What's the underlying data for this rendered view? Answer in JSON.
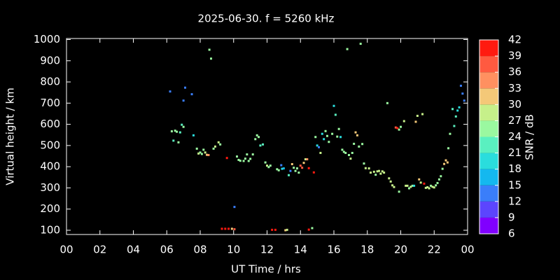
{
  "chart_data": {
    "type": "scatter",
    "title": "2025-06-30. f = 5260 kHz",
    "xlabel": "UT Time / hrs",
    "ylabel": "Virtual height / km",
    "xlim": [
      0,
      24
    ],
    "xticks": [
      {
        "value": 0,
        "label": "00"
      },
      {
        "value": 2,
        "label": "02"
      },
      {
        "value": 4,
        "label": "04"
      },
      {
        "value": 6,
        "label": "06"
      },
      {
        "value": 8,
        "label": "08"
      },
      10,
      12,
      14,
      16,
      18,
      20,
      22,
      {
        "value": 24,
        "label": "00"
      }
    ],
    "ylim": [
      80,
      1005
    ],
    "yticks": [
      100,
      200,
      300,
      400,
      500,
      600,
      700,
      800,
      900,
      1000
    ],
    "colorbar": {
      "label": "SNR / dB",
      "lim": [
        6,
        42
      ],
      "ticks": [
        6,
        9,
        12,
        15,
        18,
        21,
        24,
        27,
        30,
        33,
        36,
        39,
        42
      ],
      "colors": [
        "#8000ff",
        "#5c45fe",
        "#3a7efa",
        "#14b8ef",
        "#2adddd",
        "#5af0c0",
        "#9af8a0",
        "#c6f08a",
        "#f4c878",
        "#ff9060",
        "#ff5a40",
        "#ff1a10"
      ]
    },
    "x": [
      6.2,
      6.3,
      6.4,
      6.5,
      6.6,
      6.7,
      6.8,
      6.9,
      7.0,
      7.0,
      7.1,
      7.5,
      7.6,
      7.8,
      7.9,
      8.0,
      8.1,
      8.2,
      8.3,
      8.4,
      8.5,
      8.55,
      8.65,
      8.8,
      8.9,
      9.1,
      9.2,
      9.3,
      9.5,
      9.6,
      9.7,
      9.9,
      10.05,
      10.05,
      10.2,
      10.3,
      10.4,
      10.6,
      10.7,
      10.8,
      10.9,
      11.0,
      11.15,
      11.3,
      11.4,
      11.5,
      11.6,
      11.75,
      11.9,
      12.0,
      12.1,
      12.2,
      12.3,
      12.5,
      12.6,
      12.7,
      12.85,
      12.9,
      13.0,
      13.1,
      13.2,
      13.3,
      13.4,
      13.5,
      13.6,
      13.7,
      13.8,
      13.9,
      14.0,
      14.1,
      14.2,
      14.3,
      14.4,
      14.5,
      14.5,
      14.7,
      14.8,
      14.9,
      15.0,
      15.1,
      15.2,
      15.3,
      15.4,
      15.5,
      15.6,
      15.7,
      15.9,
      16.0,
      16.1,
      16.2,
      16.3,
      16.4,
      16.5,
      16.6,
      16.7,
      16.8,
      16.9,
      17.0,
      17.1,
      17.2,
      17.3,
      17.4,
      17.5,
      17.6,
      17.7,
      17.8,
      17.9,
      18.1,
      18.2,
      18.4,
      18.5,
      18.6,
      18.7,
      18.8,
      18.9,
      19.0,
      19.2,
      19.3,
      19.4,
      19.5,
      19.6,
      19.7,
      19.8,
      19.9,
      19.9,
      20.0,
      20.2,
      20.3,
      20.4,
      20.5,
      20.6,
      20.7,
      20.8,
      20.9,
      21.0,
      21.1,
      21.2,
      21.3,
      21.4,
      21.5,
      21.6,
      21.7,
      21.8,
      21.9,
      22.0,
      22.1,
      22.2,
      22.3,
      22.4,
      22.5,
      22.6,
      22.7,
      22.8,
      22.85,
      22.95,
      23.1,
      23.2,
      23.3,
      23.4,
      23.5,
      23.6,
      23.7,
      23.8
    ],
    "values": [
      755,
      567,
      523,
      570,
      565,
      515,
      562,
      598,
      588,
      712,
      773,
      742,
      548,
      485,
      462,
      467,
      460,
      480,
      467,
      456,
      455,
      952,
      910,
      485,
      495,
      515,
      505,
      107,
      107,
      441,
      107,
      107,
      105,
      210,
      448,
      432,
      428,
      427,
      438,
      458,
      427,
      437,
      458,
      530,
      548,
      540,
      500,
      505,
      420,
      405,
      398,
      405,
      102,
      102,
      388,
      383,
      407,
      390,
      392,
      100,
      102,
      360,
      380,
      412,
      395,
      380,
      392,
      372,
      405,
      395,
      418,
      435,
      435,
      393,
      103,
      110,
      373,
      540,
      500,
      492,
      465,
      555,
      530,
      568,
      545,
      517,
      555,
      687,
      645,
      542,
      578,
      540,
      480,
      470,
      465,
      955,
      455,
      438,
      465,
      508,
      562,
      548,
      495,
      980,
      507,
      415,
      393,
      392,
      372,
      376,
      362,
      378,
      380,
      367,
      378,
      372,
      700,
      345,
      330,
      312,
      304,
      585,
      582,
      282,
      575,
      588,
      615,
      310,
      310,
      298,
      305,
      310,
      310,
      612,
      640,
      340,
      325,
      648,
      320,
      300,
      303,
      298,
      310,
      305,
      302,
      312,
      323,
      340,
      355,
      390,
      413,
      430,
      420,
      487,
      555,
      672,
      592,
      637,
      665,
      680,
      782,
      745,
      712
    ],
    "snr": [
      12,
      24,
      22,
      25,
      24,
      24,
      22,
      21,
      24,
      12,
      12,
      12,
      20,
      26,
      27,
      25,
      26,
      25,
      28,
      32,
      34,
      26,
      26,
      26,
      27,
      27,
      26,
      39,
      39,
      40,
      39,
      30,
      36,
      12,
      24,
      24,
      24,
      24,
      26,
      25,
      24,
      24,
      25,
      24,
      24,
      24,
      22,
      22,
      24,
      28,
      26,
      26,
      39,
      40,
      25,
      24,
      12,
      18,
      15,
      30,
      28,
      22,
      14,
      30,
      26,
      24,
      25,
      24,
      38,
      36,
      30,
      28,
      34,
      40,
      39,
      24,
      40,
      26,
      18,
      12,
      28,
      20,
      20,
      25,
      26,
      24,
      24,
      20,
      22,
      24,
      24,
      20,
      26,
      26,
      26,
      25,
      26,
      28,
      26,
      25,
      32,
      30,
      26,
      24,
      25,
      26,
      27,
      27,
      27,
      27,
      26,
      27,
      27,
      27,
      27,
      27,
      26,
      27,
      28,
      27,
      28,
      36,
      40,
      24,
      24,
      25,
      27,
      28,
      28,
      26,
      27,
      25,
      18,
      30,
      27,
      32,
      27,
      28,
      40,
      27,
      27,
      27,
      26,
      28,
      28,
      26,
      26,
      26,
      24,
      24,
      30,
      30,
      30,
      24,
      26,
      22,
      21,
      21,
      20,
      20,
      12,
      12,
      12
    ]
  }
}
